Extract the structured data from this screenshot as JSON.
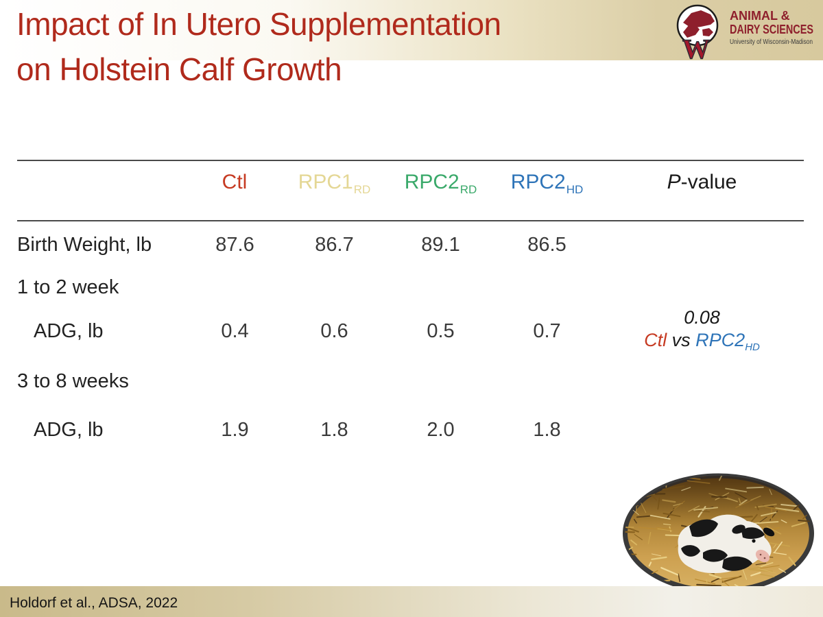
{
  "title": {
    "line1": "Impact of In Utero Supplementation",
    "line2": "on Holstein Calf Growth"
  },
  "logo": {
    "line1": "ANIMAL &",
    "line2": "DAIRY SCIENCES",
    "line3": "University of Wisconsin-Madison",
    "monogram": "W"
  },
  "table": {
    "header": {
      "col1": {
        "label": "Ctl",
        "sub": ""
      },
      "col2": {
        "label": "RPC1",
        "sub": "RD"
      },
      "col3": {
        "label": "RPC2",
        "sub": "RD"
      },
      "col4": {
        "label": "RPC2",
        "sub": "HD"
      },
      "pvalue_italic": "P",
      "pvalue_rest": "-value"
    },
    "rows": [
      {
        "label": "Birth Weight, lb",
        "v1": "87.6",
        "v2": "86.7",
        "v3": "89.1",
        "v4": "86.5"
      },
      {
        "label": "1 to 2 week"
      },
      {
        "label": "ADG, lb",
        "v1": "0.4",
        "v2": "0.6",
        "v3": "0.5",
        "v4": "0.7",
        "pvalue": "0.08",
        "contrast_a": "Ctl",
        "contrast_vs": " vs ",
        "contrast_b": "RPC2",
        "contrast_b_sub": "HD"
      },
      {
        "label": "3 to 8 weeks"
      },
      {
        "label": "ADG, lb",
        "v1": "1.9",
        "v2": "1.8",
        "v3": "2.0",
        "v4": "1.8"
      }
    ]
  },
  "footer": {
    "citation": "Holdorf et al., ADSA, 2022"
  },
  "colors": {
    "title_red": "#b02a1c",
    "ctl_red": "#c63a22",
    "rpc1_yellow": "#e4d795",
    "rpc2rd_green": "#3aa96a",
    "rpc2hd_blue": "#2e74b8",
    "band_tan": "#d7c99e",
    "logo_crimson": "#8e1f2c"
  }
}
